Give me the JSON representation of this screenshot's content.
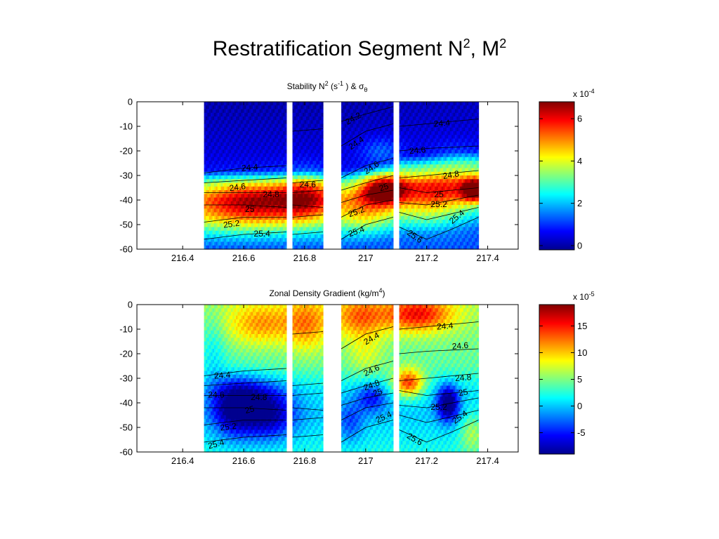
{
  "slide": {
    "title_main": "Restratification Segment N",
    "title_sup1": "2",
    "title_mid": ", M",
    "title_sup2": "2"
  },
  "chart_data": [
    {
      "type": "heatmap",
      "title_base": "Stability N",
      "title_sup": "2",
      "title_unit_open": " (s",
      "title_unit_sup": "-1",
      "title_unit_close": " )  & σ",
      "title_sub": "θ",
      "xlabel": "",
      "ylabel": "",
      "xlim": [
        216.25,
        217.5
      ],
      "ylim": [
        -60,
        0
      ],
      "x_ticks": [
        "216.4",
        "216.6",
        "216.8",
        "217",
        "217.2",
        "217.4"
      ],
      "x_tick_values": [
        216.4,
        216.6,
        216.8,
        217.0,
        217.2,
        217.4
      ],
      "y_ticks": [
        "0",
        "-10",
        "-20",
        "-30",
        "-40",
        "-50",
        "-60"
      ],
      "y_tick_values": [
        0,
        -10,
        -20,
        -30,
        -40,
        -50,
        -60
      ],
      "data_segments": [
        [
          216.47,
          216.74
        ],
        [
          216.76,
          216.86
        ],
        [
          216.92,
          217.09
        ],
        [
          217.11,
          217.37
        ]
      ],
      "colorbar": {
        "min": -0.2,
        "max": 6.8,
        "exponent": "x 10",
        "exponent_sup": "-4",
        "ticks": [
          "6",
          "4",
          "2",
          "0"
        ],
        "tick_values": [
          6,
          4,
          2,
          0
        ]
      },
      "contours": [
        {
          "label": "24.2",
          "x": [
            216.92,
            217.0,
            217.09
          ],
          "y": [
            -8,
            -5,
            -2
          ]
        },
        {
          "label": "24.4",
          "x": [
            216.47,
            216.6,
            216.74,
            216.76,
            216.86,
            216.92,
            217.0,
            217.09,
            217.11,
            217.2,
            217.37
          ],
          "y": [
            -29,
            -27,
            -26,
            -12,
            -11,
            -18,
            -12,
            -9,
            -10,
            -9,
            -7
          ]
        },
        {
          "label": "24.6",
          "x": [
            216.47,
            216.6,
            216.74,
            216.76,
            216.86,
            216.92,
            217.0,
            217.09,
            217.11,
            217.2,
            217.37
          ],
          "y": [
            -33,
            -32,
            -31,
            -33,
            -32,
            -31,
            -26,
            -23,
            -20,
            -19,
            -18
          ]
        },
        {
          "label": "24.8",
          "x": [
            216.47,
            216.6,
            216.74,
            216.76,
            216.86,
            216.92,
            217.0,
            217.09,
            217.11,
            217.2,
            217.37
          ],
          "y": [
            -37,
            -37,
            -37,
            -37,
            -36,
            -36,
            -33,
            -30,
            -31,
            -30,
            -28
          ]
        },
        {
          "label": "25",
          "x": [
            216.47,
            216.6,
            216.74,
            216.76,
            216.86,
            216.92,
            217.0,
            217.09,
            217.11,
            217.2,
            217.37
          ],
          "y": [
            -42,
            -42,
            -43,
            -42,
            -43,
            -41,
            -38,
            -36,
            -35,
            -37,
            -35
          ]
        },
        {
          "label": "25.2",
          "x": [
            216.47,
            216.6,
            216.74,
            216.76,
            216.86,
            216.92,
            217.0,
            217.09,
            217.11,
            217.2,
            217.37
          ],
          "y": [
            -49,
            -47,
            -47,
            -47,
            -46,
            -47,
            -42,
            -40,
            -41,
            -42,
            -38
          ]
        },
        {
          "label": "25.4",
          "x": [
            216.47,
            216.6,
            216.74,
            216.76,
            216.86,
            216.92,
            217.0,
            217.09,
            217.11,
            217.2,
            217.37
          ],
          "y": [
            -56,
            -54,
            -53,
            -54,
            -53,
            -56,
            -50,
            -47,
            -45,
            -48,
            -43
          ]
        },
        {
          "label": "25.6",
          "x": [
            217.11,
            217.2,
            217.28,
            217.37
          ],
          "y": [
            -51,
            -56,
            -52,
            -47
          ]
        }
      ],
      "contour_labels": [
        {
          "text": "24.2",
          "x": 216.96,
          "y": -7,
          "angle": -30
        },
        {
          "text": "24.4",
          "x": 216.97,
          "y": -17,
          "angle": -35
        },
        {
          "text": "24.4",
          "x": 217.25,
          "y": -9,
          "angle": -5
        },
        {
          "text": "24.4",
          "x": 216.62,
          "y": -27,
          "angle": -5
        },
        {
          "text": "24.6",
          "x": 217.02,
          "y": -27,
          "angle": -35
        },
        {
          "text": "24.6",
          "x": 217.17,
          "y": -20,
          "angle": -5
        },
        {
          "text": "24.6",
          "x": 216.58,
          "y": -35,
          "angle": -8
        },
        {
          "text": "24.6",
          "x": 216.81,
          "y": -34,
          "angle": 0
        },
        {
          "text": "24.8",
          "x": 216.69,
          "y": -38,
          "angle": 0
        },
        {
          "text": "24.8",
          "x": 217.28,
          "y": -30,
          "angle": -10
        },
        {
          "text": "25",
          "x": 217.06,
          "y": -35,
          "angle": -20
        },
        {
          "text": "25",
          "x": 217.24,
          "y": -38,
          "angle": 0
        },
        {
          "text": "25",
          "x": 216.62,
          "y": -44,
          "angle": 0
        },
        {
          "text": "25.2",
          "x": 216.97,
          "y": -45,
          "angle": -20
        },
        {
          "text": "25.2",
          "x": 217.24,
          "y": -42,
          "angle": 0
        },
        {
          "text": "25.2",
          "x": 216.56,
          "y": -50,
          "angle": -8
        },
        {
          "text": "25.4",
          "x": 216.66,
          "y": -54,
          "angle": 0
        },
        {
          "text": "25.4",
          "x": 216.97,
          "y": -53,
          "angle": -20
        },
        {
          "text": "25.4",
          "x": 217.3,
          "y": -47,
          "angle": -40
        },
        {
          "text": "25.6",
          "x": 217.16,
          "y": -55,
          "angle": 35
        }
      ],
      "features": [
        {
          "x": 216.65,
          "y": -40,
          "sx": 0.15,
          "sy": 6,
          "v": 3.0
        },
        {
          "x": 216.6,
          "y": -48,
          "sx": 0.2,
          "sy": 5,
          "v": 1.2
        },
        {
          "x": 216.81,
          "y": -38,
          "sx": 0.06,
          "sy": 7,
          "v": 1.8
        },
        {
          "x": 217.06,
          "y": -36,
          "sx": 0.05,
          "sy": 4,
          "v": 3.8
        },
        {
          "x": 217.0,
          "y": -45,
          "sx": 0.06,
          "sy": 6,
          "v": 1.6
        },
        {
          "x": 217.36,
          "y": -36,
          "sx": 0.03,
          "sy": 3,
          "v": 4.0
        },
        {
          "x": 217.25,
          "y": -36,
          "sx": 0.12,
          "sy": 5,
          "v": 2.5
        },
        {
          "x": 217.2,
          "y": -45,
          "sx": 0.1,
          "sy": 6,
          "v": 1.4
        },
        {
          "x": 217.05,
          "y": -20,
          "sx": 0.05,
          "sy": 4,
          "v": 0.9
        },
        {
          "x": 217.3,
          "y": -22,
          "sx": 0.06,
          "sy": 4,
          "v": 0.6
        }
      ],
      "baseline": [
        {
          "d": 0,
          "v": 0.0
        },
        {
          "d": -28,
          "v": 0.5
        },
        {
          "d": -33,
          "v": 2.6
        },
        {
          "d": -40,
          "v": 3.4
        },
        {
          "d": -47,
          "v": 2.6
        },
        {
          "d": -53,
          "v": 1.9
        },
        {
          "d": -60,
          "v": 1.2
        }
      ],
      "baseline_shift": [
        {
          "x": 216.47,
          "s": 0
        },
        {
          "x": 216.86,
          "s": 0
        },
        {
          "x": 216.92,
          "s": 0
        },
        {
          "x": 217.09,
          "s": 4
        },
        {
          "x": 217.11,
          "s": 6
        },
        {
          "x": 217.37,
          "s": 8
        }
      ]
    },
    {
      "type": "heatmap",
      "title_base": "Zonal Density Gradient (kg/m",
      "title_sup": "4",
      "title_close": ")",
      "xlabel": "",
      "ylabel": "",
      "xlim": [
        216.25,
        217.5
      ],
      "ylim": [
        -60,
        0
      ],
      "x_ticks": [
        "216.4",
        "216.6",
        "216.8",
        "217",
        "217.2",
        "217.4"
      ],
      "x_tick_values": [
        216.4,
        216.6,
        216.8,
        217.0,
        217.2,
        217.4
      ],
      "y_ticks": [
        "0",
        "-10",
        "-20",
        "-30",
        "-40",
        "-50",
        "-60"
      ],
      "y_tick_values": [
        0,
        -10,
        -20,
        -30,
        -40,
        -50,
        -60
      ],
      "data_segments": [
        [
          216.47,
          216.74
        ],
        [
          216.76,
          216.86
        ],
        [
          216.92,
          217.09
        ],
        [
          217.11,
          217.37
        ]
      ],
      "colorbar": {
        "min": -9,
        "max": 19,
        "exponent": "x 10",
        "exponent_sup": "-5",
        "ticks": [
          "15",
          "10",
          "5",
          "0",
          "-5"
        ],
        "tick_values": [
          15,
          10,
          5,
          0,
          -5
        ]
      },
      "contours": [
        {
          "label": "24.4",
          "x": [
            216.47,
            216.6,
            216.74,
            216.76,
            216.86,
            216.92,
            217.0,
            217.09,
            217.11,
            217.2,
            217.37
          ],
          "y": [
            -29,
            -27,
            -26,
            -12,
            -11,
            -18,
            -12,
            -9,
            -10,
            -9,
            -7
          ]
        },
        {
          "label": "24.6",
          "x": [
            216.47,
            216.6,
            216.74,
            216.76,
            216.86,
            216.92,
            217.0,
            217.09,
            217.11,
            217.2,
            217.37
          ],
          "y": [
            -33,
            -32,
            -31,
            -33,
            -32,
            -31,
            -26,
            -23,
            -20,
            -19,
            -18
          ]
        },
        {
          "label": "24.8",
          "x": [
            216.47,
            216.6,
            216.74,
            216.76,
            216.86,
            216.92,
            217.0,
            217.09,
            217.11,
            217.2,
            217.37
          ],
          "y": [
            -37,
            -37,
            -37,
            -37,
            -36,
            -36,
            -33,
            -30,
            -31,
            -30,
            -28
          ]
        },
        {
          "label": "25",
          "x": [
            216.47,
            216.6,
            216.74,
            216.76,
            216.86,
            216.92,
            217.0,
            217.09,
            217.11,
            217.2,
            217.37
          ],
          "y": [
            -42,
            -42,
            -43,
            -42,
            -43,
            -41,
            -38,
            -36,
            -35,
            -37,
            -35
          ]
        },
        {
          "label": "25.2",
          "x": [
            216.47,
            216.6,
            216.74,
            216.76,
            216.86,
            216.92,
            217.0,
            217.09,
            217.11,
            217.2,
            217.37
          ],
          "y": [
            -49,
            -47,
            -47,
            -47,
            -46,
            -47,
            -42,
            -40,
            -41,
            -42,
            -38
          ]
        },
        {
          "label": "25.4",
          "x": [
            216.47,
            216.6,
            216.74,
            216.76,
            216.86,
            216.92,
            217.0,
            217.09,
            217.11,
            217.2,
            217.37
          ],
          "y": [
            -56,
            -54,
            -53,
            -54,
            -53,
            -56,
            -50,
            -47,
            -45,
            -48,
            -43
          ]
        },
        {
          "label": "25.6",
          "x": [
            217.11,
            217.2,
            217.28,
            217.37
          ],
          "y": [
            -51,
            -56,
            -52,
            -47
          ]
        }
      ],
      "contour_labels": [
        {
          "text": "24.4",
          "x": 217.02,
          "y": -14,
          "angle": -30
        },
        {
          "text": "24.4",
          "x": 217.26,
          "y": -9,
          "angle": -5
        },
        {
          "text": "24.4",
          "x": 216.53,
          "y": -29,
          "angle": -5
        },
        {
          "text": "24.6",
          "x": 217.31,
          "y": -17,
          "angle": -5
        },
        {
          "text": "24.6",
          "x": 217.02,
          "y": -27,
          "angle": -25
        },
        {
          "text": "24.6",
          "x": 216.51,
          "y": -37,
          "angle": 0
        },
        {
          "text": "24.8",
          "x": 216.65,
          "y": -38,
          "angle": 0
        },
        {
          "text": "24.8",
          "x": 217.02,
          "y": -33,
          "angle": -20
        },
        {
          "text": "24.8",
          "x": 217.32,
          "y": -30,
          "angle": -5
        },
        {
          "text": "25",
          "x": 216.62,
          "y": -43,
          "angle": -15
        },
        {
          "text": "25",
          "x": 217.04,
          "y": -36,
          "angle": -20
        },
        {
          "text": "25",
          "x": 217.32,
          "y": -36,
          "angle": -10
        },
        {
          "text": "25.2",
          "x": 216.55,
          "y": -50,
          "angle": -8
        },
        {
          "text": "25.2",
          "x": 217.24,
          "y": -42,
          "angle": 0
        },
        {
          "text": "25.4",
          "x": 216.51,
          "y": -57,
          "angle": -15
        },
        {
          "text": "25.4",
          "x": 217.06,
          "y": -46,
          "angle": -25
        },
        {
          "text": "25.4",
          "x": 217.31,
          "y": -46,
          "angle": -35
        },
        {
          "text": "25.6",
          "x": 217.16,
          "y": -55,
          "angle": 30
        }
      ],
      "features": [
        {
          "x": 216.57,
          "y": -42,
          "sx": 0.05,
          "sy": 8,
          "v": -10
        },
        {
          "x": 216.68,
          "y": -45,
          "sx": 0.06,
          "sy": 7,
          "v": -9
        },
        {
          "x": 216.63,
          "y": -36,
          "sx": 0.07,
          "sy": 5,
          "v": -4
        },
        {
          "x": 216.66,
          "y": -8,
          "sx": 0.08,
          "sy": 6,
          "v": 6
        },
        {
          "x": 216.81,
          "y": -8,
          "sx": 0.05,
          "sy": 8,
          "v": 6
        },
        {
          "x": 216.98,
          "y": -5,
          "sx": 0.06,
          "sy": 6,
          "v": 7
        },
        {
          "x": 217.17,
          "y": -4,
          "sx": 0.08,
          "sy": 5,
          "v": 10
        },
        {
          "x": 217.14,
          "y": -32,
          "sx": 0.035,
          "sy": 4,
          "v": 12
        },
        {
          "x": 217.27,
          "y": -40,
          "sx": 0.025,
          "sy": 5,
          "v": -12
        },
        {
          "x": 217.02,
          "y": -38,
          "sx": 0.035,
          "sy": 4,
          "v": -6
        },
        {
          "x": 217.0,
          "y": -20,
          "sx": 0.04,
          "sy": 6,
          "v": 3
        },
        {
          "x": 216.95,
          "y": -48,
          "sx": 0.03,
          "sy": 6,
          "v": -4
        },
        {
          "x": 216.5,
          "y": -20,
          "sx": 0.03,
          "sy": 12,
          "v": -3
        },
        {
          "x": 217.35,
          "y": -52,
          "sx": 0.03,
          "sy": 6,
          "v": 5
        }
      ],
      "baseline": [
        {
          "d": 0,
          "v": 6
        },
        {
          "d": -25,
          "v": 4
        },
        {
          "d": -35,
          "v": 1
        },
        {
          "d": -45,
          "v": 0
        },
        {
          "d": -60,
          "v": 2
        }
      ],
      "baseline_shift": [
        {
          "x": 216.47,
          "s": 0
        },
        {
          "x": 217.37,
          "s": 0
        }
      ]
    }
  ]
}
